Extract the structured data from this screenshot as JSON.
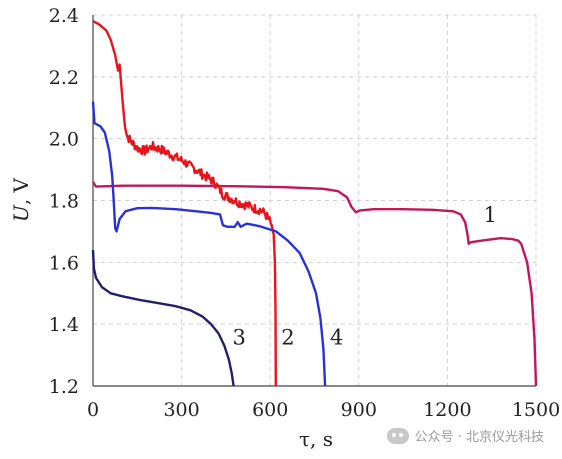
{
  "chart_data": {
    "type": "line",
    "xlabel": "τ, s",
    "ylabel_main": "U",
    "ylabel_unit": ", V",
    "xlim": [
      0,
      1500
    ],
    "ylim": [
      1.2,
      2.4
    ],
    "xticks": [
      0,
      300,
      600,
      900,
      1200,
      1500
    ],
    "yticks": [
      1.2,
      1.4,
      1.6,
      1.8,
      2.0,
      2.2,
      2.4
    ],
    "xtick_labels": [
      "0",
      "300",
      "600",
      "900",
      "1200",
      "1500"
    ],
    "ytick_labels": [
      "1.2",
      "1.4",
      "1.6",
      "1.8",
      "2.0",
      "2.2",
      "2.4"
    ],
    "grid": true,
    "series": [
      {
        "label": "1",
        "label_pos": [
          1345,
          1.73
        ],
        "color": "#c0175c",
        "points": [
          [
            0,
            1.86
          ],
          [
            10,
            1.845
          ],
          [
            100,
            1.848
          ],
          [
            300,
            1.848
          ],
          [
            500,
            1.846
          ],
          [
            650,
            1.843
          ],
          [
            780,
            1.838
          ],
          [
            830,
            1.83
          ],
          [
            860,
            1.81
          ],
          [
            875,
            1.78
          ],
          [
            890,
            1.762
          ],
          [
            905,
            1.768
          ],
          [
            950,
            1.772
          ],
          [
            1050,
            1.772
          ],
          [
            1150,
            1.77
          ],
          [
            1220,
            1.765
          ],
          [
            1245,
            1.755
          ],
          [
            1260,
            1.73
          ],
          [
            1268,
            1.69
          ],
          [
            1272,
            1.66
          ],
          [
            1280,
            1.665
          ],
          [
            1300,
            1.668
          ],
          [
            1330,
            1.672
          ],
          [
            1380,
            1.678
          ],
          [
            1420,
            1.675
          ],
          [
            1440,
            1.67
          ],
          [
            1450,
            1.66
          ],
          [
            1470,
            1.6
          ],
          [
            1485,
            1.5
          ],
          [
            1495,
            1.35
          ],
          [
            1500,
            1.2
          ]
        ]
      },
      {
        "label": "2",
        "label_pos": [
          660,
          1.335
        ],
        "color": "#e8141c",
        "points": [
          [
            0,
            2.38
          ],
          [
            20,
            2.37
          ],
          [
            45,
            2.35
          ],
          [
            60,
            2.32
          ],
          [
            75,
            2.27
          ],
          [
            85,
            2.22
          ],
          [
            90,
            2.24
          ],
          [
            97,
            2.16
          ],
          [
            105,
            2.07
          ],
          [
            115,
            2.01
          ],
          [
            130,
            1.99
          ],
          [
            150,
            1.97
          ],
          [
            175,
            1.96
          ],
          [
            200,
            1.975
          ],
          [
            230,
            1.965
          ],
          [
            260,
            1.95
          ],
          [
            290,
            1.935
          ],
          [
            310,
            1.925
          ],
          [
            330,
            1.91
          ],
          [
            350,
            1.9
          ],
          [
            370,
            1.885
          ],
          [
            395,
            1.87
          ],
          [
            410,
            1.86
          ],
          [
            425,
            1.84
          ],
          [
            440,
            1.82
          ],
          [
            460,
            1.81
          ],
          [
            490,
            1.795
          ],
          [
            520,
            1.785
          ],
          [
            545,
            1.775
          ],
          [
            565,
            1.77
          ],
          [
            580,
            1.76
          ],
          [
            595,
            1.74
          ],
          [
            605,
            1.72
          ],
          [
            612,
            1.69
          ],
          [
            616,
            1.6
          ],
          [
            618,
            1.45
          ],
          [
            619,
            1.2
          ]
        ]
      },
      {
        "label": "3",
        "label_pos": [
          495,
          1.335
        ],
        "color": "#22206e",
        "points": [
          [
            0,
            1.64
          ],
          [
            3,
            1.58
          ],
          [
            10,
            1.55
          ],
          [
            30,
            1.52
          ],
          [
            60,
            1.5
          ],
          [
            100,
            1.49
          ],
          [
            160,
            1.478
          ],
          [
            220,
            1.468
          ],
          [
            280,
            1.458
          ],
          [
            330,
            1.445
          ],
          [
            370,
            1.425
          ],
          [
            400,
            1.4
          ],
          [
            425,
            1.37
          ],
          [
            445,
            1.33
          ],
          [
            460,
            1.285
          ],
          [
            470,
            1.24
          ],
          [
            476,
            1.2
          ]
        ]
      },
      {
        "label": "4",
        "label_pos": [
          825,
          1.335
        ],
        "color": "#2a32d6",
        "points": [
          [
            0,
            2.12
          ],
          [
            5,
            2.05
          ],
          [
            25,
            2.04
          ],
          [
            40,
            2.02
          ],
          [
            55,
            1.96
          ],
          [
            65,
            1.88
          ],
          [
            70,
            1.8
          ],
          [
            75,
            1.71
          ],
          [
            80,
            1.7
          ],
          [
            90,
            1.74
          ],
          [
            110,
            1.765
          ],
          [
            150,
            1.775
          ],
          [
            200,
            1.776
          ],
          [
            280,
            1.772
          ],
          [
            350,
            1.765
          ],
          [
            400,
            1.76
          ],
          [
            430,
            1.755
          ],
          [
            440,
            1.72
          ],
          [
            455,
            1.715
          ],
          [
            480,
            1.715
          ],
          [
            490,
            1.73
          ],
          [
            500,
            1.715
          ],
          [
            520,
            1.725
          ],
          [
            560,
            1.718
          ],
          [
            620,
            1.7
          ],
          [
            660,
            1.67
          ],
          [
            700,
            1.63
          ],
          [
            730,
            1.57
          ],
          [
            755,
            1.5
          ],
          [
            770,
            1.42
          ],
          [
            780,
            1.32
          ],
          [
            786,
            1.2
          ]
        ]
      }
    ]
  },
  "watermark": {
    "text": "公众号 · 北京仪光科技",
    "icon": "wechat-icon"
  }
}
